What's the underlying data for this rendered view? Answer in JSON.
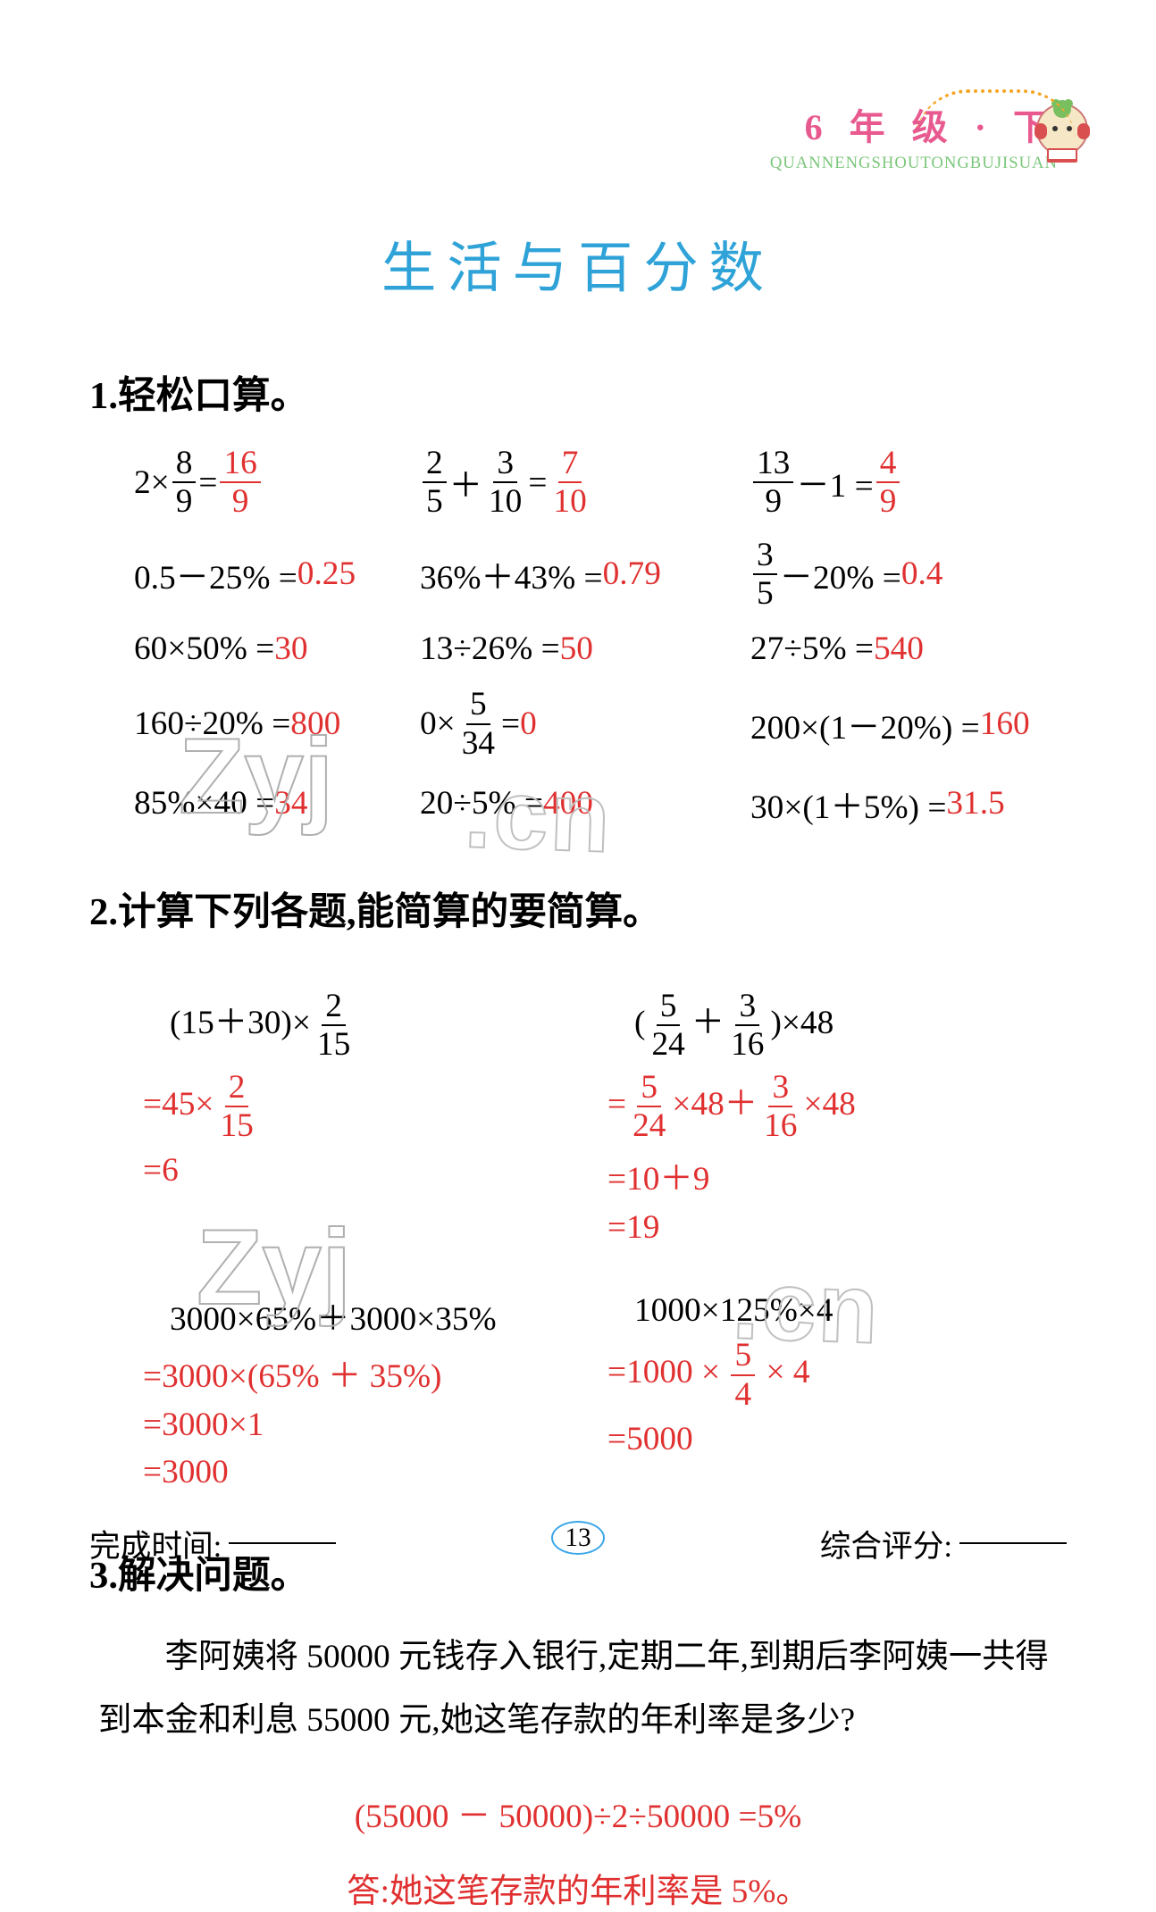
{
  "colors": {
    "page_bg": "#ffffff",
    "text": "#000000",
    "answer": "#e03030",
    "header_title": "#e85a8f",
    "header_sub": "#7bc67b",
    "main_title": "#2fa3d8",
    "page_num_border": "#3aa6e8",
    "page_num_base": "#69c2f2",
    "mascot_arc": "#f5a623",
    "watermark_stroke": "#b0b0b0"
  },
  "typography": {
    "header_title_pt": 30,
    "header_sub_pt": 14,
    "main_title_pt": 46,
    "section_title_pt": 32,
    "body_pt": 28,
    "footer_pt": 26,
    "page_num_pt": 22
  },
  "header": {
    "title": "6 年 级 · 下",
    "sub": "QUANNENGSHOUTONGBUJISUAN"
  },
  "main_title": "生活与百分数",
  "watermark": {
    "wm1": "Zyj",
    "wm2": ".cn",
    "wm3": "Zyj",
    "wm4": ".cn"
  },
  "section1": {
    "title": "1.轻松口算。",
    "rows": [
      {
        "c1": {
          "expr_parts": [
            "2×",
            {
              "frac": [
                "8",
                "9"
              ]
            },
            " ="
          ],
          "ans_frac": [
            "16",
            "9"
          ]
        },
        "c2": {
          "expr_parts": [
            {
              "frac": [
                "2",
                "5"
              ]
            },
            "＋",
            {
              "frac": [
                "3",
                "10"
              ]
            },
            " ="
          ],
          "ans_frac": [
            "7",
            "10"
          ]
        },
        "c3": {
          "expr_parts": [
            {
              "frac": [
                "13",
                "9"
              ]
            },
            "－1 ="
          ],
          "ans_frac": [
            "4",
            "9"
          ]
        }
      },
      {
        "c1": {
          "expr": "0.5－25% =",
          "ans": "0.25"
        },
        "c2": {
          "expr": "36%＋43% =",
          "ans": "0.79"
        },
        "c3": {
          "expr_parts": [
            {
              "frac": [
                "3",
                "5"
              ]
            },
            "－20% ="
          ],
          "ans": " 0.4"
        }
      },
      {
        "c1": {
          "expr": "60×50% =",
          "ans": "30"
        },
        "c2": {
          "expr": "13÷26% =",
          "ans": "50"
        },
        "c3": {
          "expr": "27÷5% =",
          "ans": " 540"
        }
      },
      {
        "c1": {
          "expr": "160÷20% =",
          "ans": "800"
        },
        "c2": {
          "expr_parts": [
            "0×",
            {
              "frac": [
                "5",
                "34"
              ]
            },
            " ="
          ],
          "ans": "0"
        },
        "c3": {
          "expr": "200×(1－20%) =",
          "ans": "160"
        }
      },
      {
        "c1": {
          "expr": "85%×40 =",
          "ans": "34"
        },
        "c2": {
          "expr": "20÷5% =",
          "ans": "400"
        },
        "c3": {
          "expr": "30×(1＋5%) =",
          "ans": " 31.5"
        }
      }
    ]
  },
  "section2": {
    "title": "2.计算下列各题,能简算的要简算。",
    "pairs": [
      {
        "left": {
          "expr_parts": [
            "(15＋30)×",
            {
              "frac": [
                "2",
                "15"
              ]
            }
          ],
          "work": [
            {
              "parts": [
                "=",
                "45×",
                {
                  "frac": [
                    "2",
                    "15"
                  ]
                }
              ],
              "color": "ans"
            },
            {
              "parts": [
                "=",
                "6"
              ],
              "color": "ans"
            }
          ]
        },
        "right": {
          "expr_parts": [
            "(",
            {
              "frac": [
                "5",
                "24"
              ]
            },
            "＋",
            {
              "frac": [
                "3",
                "16"
              ]
            },
            ")×48"
          ],
          "work": [
            {
              "parts": [
                "=",
                {
                  "frac": [
                    "5",
                    "24"
                  ]
                },
                "×48＋",
                {
                  "frac": [
                    "3",
                    "16"
                  ]
                },
                "×48"
              ],
              "color": "ans"
            },
            {
              "parts": [
                "=",
                "10＋9"
              ],
              "color": "ans"
            },
            {
              "parts": [
                "=",
                "19"
              ],
              "color": "ans"
            }
          ]
        }
      },
      {
        "left": {
          "expr_parts": [
            "3000×65%＋3000×35%"
          ],
          "work": [
            {
              "parts": [
                "=",
                "3000×(65% ＋ 35%)"
              ],
              "color": "ans"
            },
            {
              "parts": [
                "=",
                "3000×1"
              ],
              "color": "ans"
            },
            {
              "parts": [
                "=",
                "3000"
              ],
              "color": "ans"
            }
          ]
        },
        "right": {
          "expr_parts": [
            "1000×125%×4"
          ],
          "work": [
            {
              "parts": [
                "=",
                "1000 × ",
                {
                  "frac": [
                    "5",
                    "4"
                  ]
                },
                " × 4"
              ],
              "color": "ans"
            },
            {
              "parts": [
                "=",
                "5000"
              ],
              "color": "ans"
            }
          ]
        }
      }
    ]
  },
  "section3": {
    "title": "3.解决问题。",
    "para": "李阿姨将 50000 元钱存入银行,定期二年,到期后李阿姨一共得到本金和利息 55000 元,她这笔存款的年利率是多少?",
    "work_line": "(55000 － 50000)÷2÷50000 =5%",
    "answer_line": "答:她这笔存款的年利率是 5%。"
  },
  "footer": {
    "left": "完成时间:",
    "right": "综合评分:",
    "page_num": "13"
  }
}
